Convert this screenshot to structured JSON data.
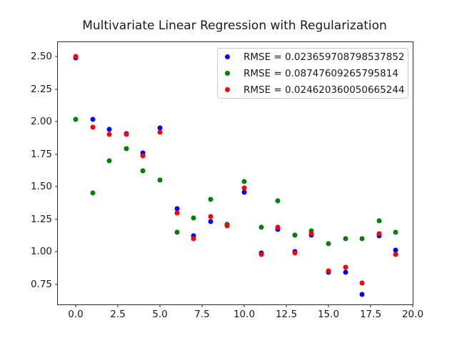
{
  "title": "Multivariate Linear Regression with Regularization",
  "chart_data": {
    "type": "scatter",
    "title": "Multivariate Linear Regression with Regularization",
    "xlabel": "",
    "ylabel": "",
    "grid": false,
    "legend_position": "upper right",
    "xlim": [
      -1.06,
      20.0
    ],
    "ylim": [
      0.594,
      2.612
    ],
    "xticks": {
      "values": [
        0,
        2.5,
        5,
        7.5,
        10,
        12.5,
        15,
        17.5,
        20
      ],
      "labels": [
        "0.0",
        "2.5",
        "5.0",
        "7.5",
        "10.0",
        "12.5",
        "15.0",
        "17.5",
        "20.0"
      ]
    },
    "yticks": {
      "values": [
        0.75,
        1.0,
        1.25,
        1.5,
        1.75,
        2.0,
        2.25,
        2.5
      ],
      "labels": [
        "0.75",
        "1.00",
        "1.25",
        "1.50",
        "1.75",
        "2.00",
        "2.25",
        "2.50"
      ]
    },
    "x": [
      0,
      1,
      2,
      3,
      4,
      5,
      6,
      7,
      8,
      9,
      10,
      11,
      12,
      13,
      14,
      15,
      16,
      17,
      18,
      19
    ],
    "series": [
      {
        "key": "blue",
        "name": "RMSE = 0.023659708798537852",
        "color": "#0000ff",
        "values": [
          2.49,
          2.02,
          1.94,
          1.91,
          1.76,
          1.95,
          1.33,
          1.12,
          1.23,
          1.21,
          1.46,
          0.99,
          1.17,
          1.0,
          1.13,
          0.84,
          0.84,
          0.67,
          1.12,
          1.01
        ]
      },
      {
        "key": "green",
        "name": "RMSE = 0.08747609265795814",
        "color": "#008000",
        "values": [
          2.02,
          1.45,
          1.7,
          1.79,
          1.62,
          1.55,
          1.15,
          1.26,
          1.4,
          1.21,
          1.54,
          1.19,
          1.39,
          1.13,
          1.16,
          1.06,
          1.1,
          1.1,
          1.24,
          1.15
        ]
      },
      {
        "key": "red",
        "name": "RMSE = 0.024620360050665244",
        "color": "#ff0000",
        "values": [
          2.5,
          1.96,
          1.9,
          1.9,
          1.74,
          1.92,
          1.3,
          1.1,
          1.27,
          1.2,
          1.49,
          0.98,
          1.19,
          0.99,
          1.14,
          0.85,
          0.88,
          0.76,
          1.14,
          0.98
        ]
      }
    ]
  }
}
